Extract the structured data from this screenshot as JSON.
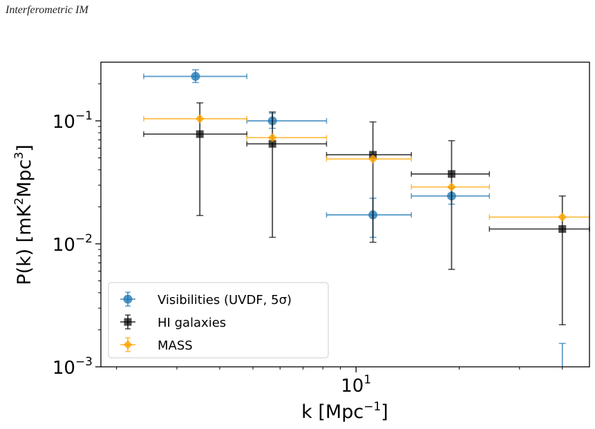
{
  "header": {
    "running_head": "Interferometric IM"
  },
  "chart_data": {
    "type": "scatter",
    "xscale": "log",
    "yscale": "log",
    "xlabel_base": "k [Mpc",
    "xlabel_exp": "−1",
    "xlabel_end": "]",
    "ylabel_base": "P(k) [mK",
    "ylabel_exp": "2",
    "ylabel_mid": "Mpc",
    "ylabel_exp2": "3",
    "ylabel_end": "]",
    "xlim": [
      1.8,
      48
    ],
    "ylim": [
      0.001,
      0.3
    ],
    "xticks": [
      {
        "base": "10",
        "exp": "1",
        "value": 10
      }
    ],
    "yticks": [
      {
        "base": "10",
        "exp": "−1",
        "value": 0.1
      },
      {
        "base": "10",
        "exp": "−2",
        "value": 0.01
      },
      {
        "base": "10",
        "exp": "−3",
        "value": 0.001
      }
    ],
    "legend_position": "lower-left",
    "series": [
      {
        "name": "Visibilities (UVDF, 5σ)",
        "color": "#1f77b4",
        "marker": "circle",
        "points": [
          {
            "x": 3.4,
            "y": 0.23,
            "xerr": [
              2.4,
              4.8
            ],
            "yerr": [
              0.205,
              0.26
            ]
          },
          {
            "x": 5.7,
            "y": 0.1,
            "xerr": [
              4.8,
              8.2
            ],
            "yerr": [
              0.087,
              0.115
            ]
          },
          {
            "x": 11.2,
            "y": 0.0172,
            "xerr": [
              8.2,
              14.5
            ],
            "yerr": [
              0.0113,
              0.0235
            ]
          },
          {
            "x": 19.0,
            "y": 0.0245,
            "xerr": [
              14.5,
              24.5
            ],
            "yerr": [
              0.021,
              0.0285
            ]
          },
          {
            "x": 40.0,
            "y": null,
            "xerr": null,
            "yerr": [
              0.001,
              0.00155
            ]
          }
        ]
      },
      {
        "name": "HI galaxies",
        "color": "#000000",
        "marker": "square",
        "points": [
          {
            "x": 3.5,
            "y": 0.078,
            "xerr": [
              2.4,
              4.8
            ],
            "yerr": [
              0.017,
              0.14
            ]
          },
          {
            "x": 5.7,
            "y": 0.065,
            "xerr": [
              4.8,
              8.2
            ],
            "yerr": [
              0.0113,
              0.118
            ]
          },
          {
            "x": 11.2,
            "y": 0.053,
            "xerr": [
              8.2,
              14.5
            ],
            "yerr": [
              0.0103,
              0.098
            ]
          },
          {
            "x": 19.0,
            "y": 0.037,
            "xerr": [
              14.5,
              24.5
            ],
            "yerr": [
              0.0062,
              0.069
            ]
          },
          {
            "x": 40.0,
            "y": 0.0132,
            "xerr": [
              24.5,
              48
            ],
            "yerr": [
              0.0022,
              0.0245
            ]
          }
        ]
      },
      {
        "name": "MASS",
        "color": "#ffa500",
        "marker": "diamond",
        "points": [
          {
            "x": 3.5,
            "y": 0.104,
            "xerr": [
              2.4,
              4.8
            ]
          },
          {
            "x": 5.7,
            "y": 0.073,
            "xerr": [
              4.8,
              8.2
            ]
          },
          {
            "x": 11.2,
            "y": 0.049,
            "xerr": [
              8.2,
              14.5
            ]
          },
          {
            "x": 19.0,
            "y": 0.029,
            "xerr": [
              14.5,
              24.5
            ]
          },
          {
            "x": 40.0,
            "y": 0.0165,
            "xerr": [
              24.5,
              48
            ]
          }
        ]
      }
    ]
  }
}
